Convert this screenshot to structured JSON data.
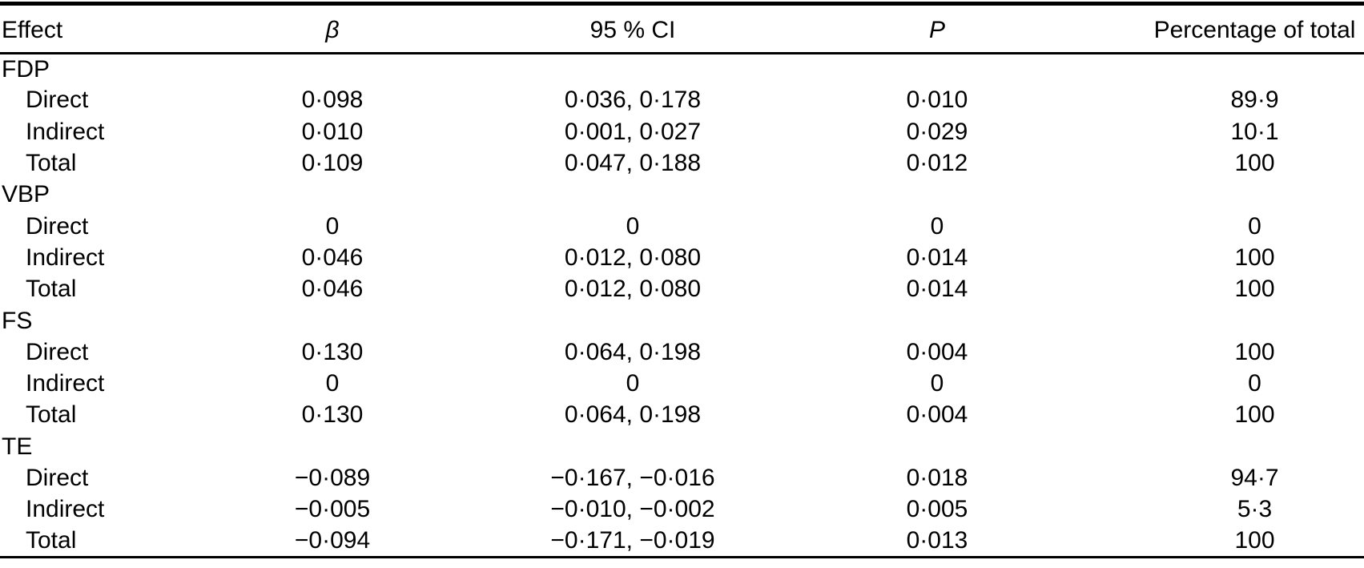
{
  "table": {
    "columns": [
      {
        "label": "Effect",
        "align": "left",
        "italic": false
      },
      {
        "label": "β",
        "align": "center",
        "italic": true
      },
      {
        "label": "95 % CI",
        "align": "center",
        "italic": false
      },
      {
        "label": "P",
        "align": "center",
        "italic": true
      },
      {
        "label": "Percentage of total",
        "align": "center",
        "italic": false
      }
    ],
    "groups": [
      {
        "name": "FDP",
        "rows": [
          {
            "effect": "Direct",
            "beta": "0·098",
            "ci": "0·036, 0·178",
            "p": "0·010",
            "pct": "89·9"
          },
          {
            "effect": "Indirect",
            "beta": "0·010",
            "ci": "0·001, 0·027",
            "p": "0·029",
            "pct": "10·1"
          },
          {
            "effect": "Total",
            "beta": "0·109",
            "ci": "0·047, 0·188",
            "p": "0·012",
            "pct": "100"
          }
        ]
      },
      {
        "name": "VBP",
        "rows": [
          {
            "effect": "Direct",
            "beta": "0",
            "ci": "0",
            "p": "0",
            "pct": "0"
          },
          {
            "effect": "Indirect",
            "beta": "0·046",
            "ci": "0·012, 0·080",
            "p": "0·014",
            "pct": "100"
          },
          {
            "effect": "Total",
            "beta": "0·046",
            "ci": "0·012, 0·080",
            "p": "0·014",
            "pct": "100"
          }
        ]
      },
      {
        "name": "FS",
        "rows": [
          {
            "effect": "Direct",
            "beta": "0·130",
            "ci": "0·064, 0·198",
            "p": "0·004",
            "pct": "100"
          },
          {
            "effect": "Indirect",
            "beta": "0",
            "ci": "0",
            "p": "0",
            "pct": "0"
          },
          {
            "effect": "Total",
            "beta": "0·130",
            "ci": "0·064, 0·198",
            "p": "0·004",
            "pct": "100"
          }
        ]
      },
      {
        "name": "TE",
        "rows": [
          {
            "effect": "Direct",
            "beta": "−0·089",
            "ci": "−0·167, −0·016",
            "p": "0·018",
            "pct": "94·7"
          },
          {
            "effect": "Indirect",
            "beta": "−0·005",
            "ci": "−0·010, −0·002",
            "p": "0·005",
            "pct": "5·3"
          },
          {
            "effect": "Total",
            "beta": "−0·094",
            "ci": "−0·171, −0·019",
            "p": "0·013",
            "pct": "100"
          }
        ]
      }
    ]
  },
  "colors": {
    "text": "#000000",
    "background": "#ffffff",
    "rule": "#000000"
  }
}
